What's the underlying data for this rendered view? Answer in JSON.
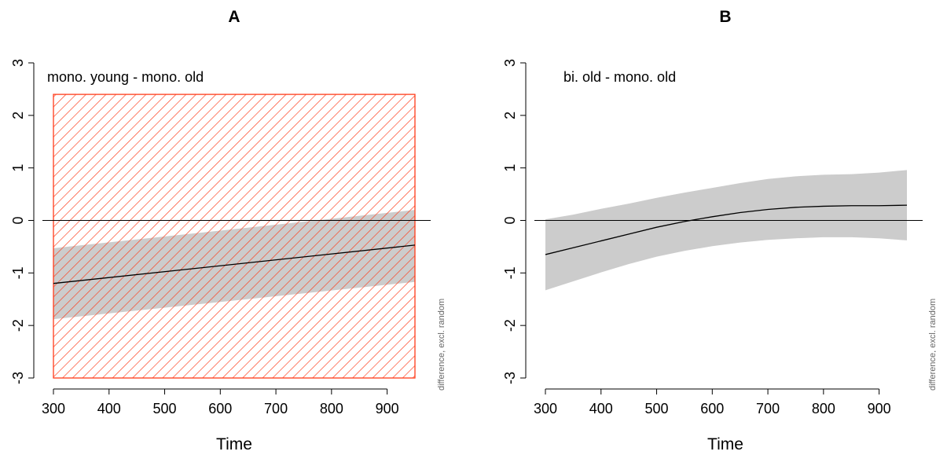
{
  "colors": {
    "band": "#cccccc",
    "hatch": "#ff3b1a",
    "line": "#000000",
    "side_note": "#666666"
  },
  "chart_data": [
    {
      "type": "line",
      "title": "A",
      "xlabel": "Time",
      "ylabel": "",
      "annotation": "mono. young - mono. old",
      "side_note": "difference, excl. random",
      "xlim": [
        300,
        950
      ],
      "ylim": [
        -3,
        3
      ],
      "x_ticks": [
        300,
        400,
        500,
        600,
        700,
        800,
        900
      ],
      "y_ticks": [
        -3,
        -2,
        -1,
        0,
        1,
        2,
        3
      ],
      "reference_line": 0,
      "grid": false,
      "hatched_region": {
        "x_from": 300,
        "x_to": 950,
        "y_from": -3,
        "y_to": 2.4
      },
      "series": [
        {
          "x": [
            300,
            950
          ],
          "y": [
            -1.2,
            -0.47
          ],
          "lower": [
            -1.88,
            -1.17
          ],
          "upper": [
            -0.53,
            0.2
          ]
        }
      ]
    },
    {
      "type": "line",
      "title": "B",
      "xlabel": "Time",
      "ylabel": "",
      "annotation": "bi. old - mono. old",
      "side_note": "difference, excl. random",
      "xlim": [
        300,
        950
      ],
      "ylim": [
        -3,
        3
      ],
      "x_ticks": [
        300,
        400,
        500,
        600,
        700,
        800,
        900
      ],
      "y_ticks": [
        -3,
        -2,
        -1,
        0,
        1,
        2,
        3
      ],
      "reference_line": 0,
      "grid": false,
      "series": [
        {
          "x": [
            300,
            350,
            400,
            450,
            500,
            550,
            600,
            650,
            700,
            750,
            800,
            850,
            900,
            950
          ],
          "y": [
            -0.65,
            -0.52,
            -0.39,
            -0.26,
            -0.13,
            -0.02,
            0.07,
            0.15,
            0.21,
            0.25,
            0.27,
            0.28,
            0.28,
            0.29
          ],
          "lower": [
            -1.33,
            -1.16,
            -0.99,
            -0.83,
            -0.69,
            -0.58,
            -0.49,
            -0.42,
            -0.37,
            -0.34,
            -0.32,
            -0.32,
            -0.34,
            -0.38
          ],
          "upper": [
            0.02,
            0.11,
            0.22,
            0.32,
            0.43,
            0.53,
            0.62,
            0.71,
            0.79,
            0.84,
            0.87,
            0.88,
            0.91,
            0.96
          ]
        }
      ]
    }
  ]
}
